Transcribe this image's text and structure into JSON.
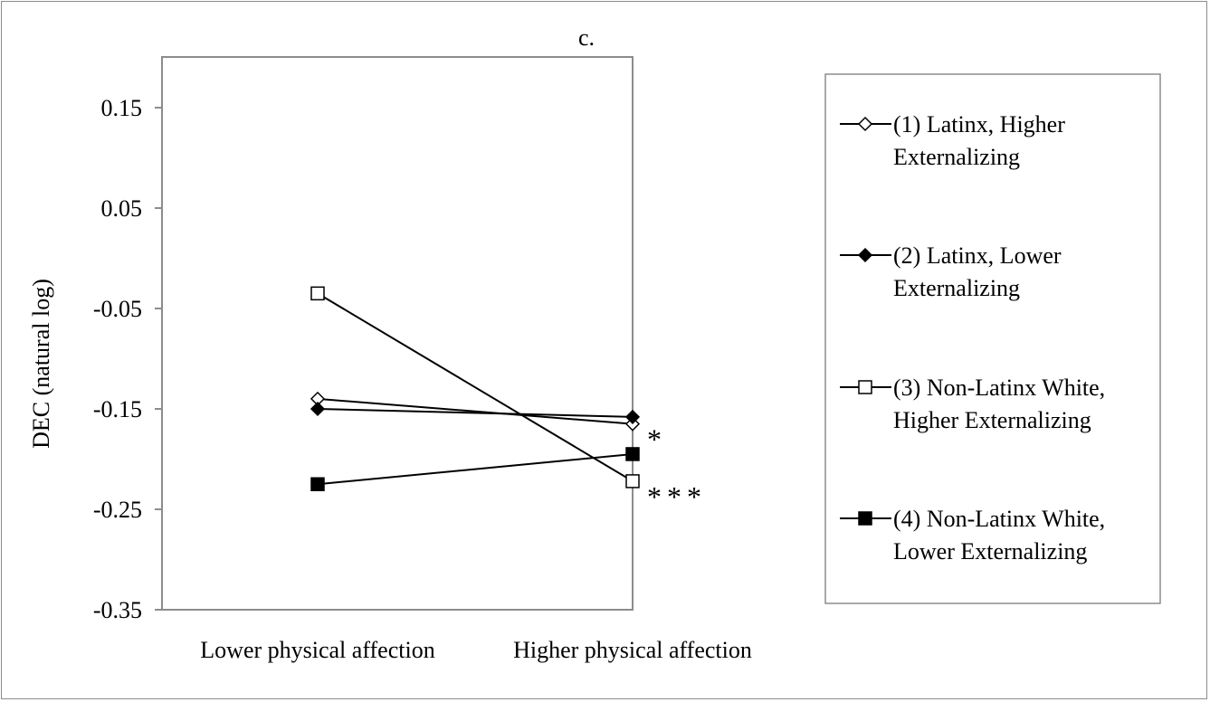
{
  "chart_data": {
    "type": "line",
    "title": "c.",
    "xlabel": "",
    "ylabel": "DEC (natural log)",
    "categories": [
      "Lower physical affection",
      "Higher physical affection"
    ],
    "ylim": [
      -0.35,
      0.2
    ],
    "yticks": [
      "0.15",
      "0.05",
      "-0.05",
      "-0.15",
      "-0.25",
      "-0.35"
    ],
    "ytick_values": [
      0.15,
      0.05,
      -0.05,
      -0.15,
      -0.25,
      -0.35
    ],
    "grid": false,
    "legend_position": "right",
    "series": [
      {
        "name_lines": [
          "(1) Latinx, Higher",
          "Externalizing"
        ],
        "marker": "diamond-open",
        "values": [
          -0.14,
          -0.165
        ],
        "annotation": "*"
      },
      {
        "name_lines": [
          "(2) Latinx, Lower",
          "Externalizing"
        ],
        "marker": "diamond-filled",
        "values": [
          -0.15,
          -0.158
        ],
        "annotation": ""
      },
      {
        "name_lines": [
          "(3) Non-Latinx White,",
          "Higher Externalizing"
        ],
        "marker": "square-open",
        "values": [
          -0.035,
          -0.222
        ],
        "annotation": "***"
      },
      {
        "name_lines": [
          "(4) Non-Latinx White,",
          "Lower Externalizing"
        ],
        "marker": "square-filled",
        "values": [
          -0.225,
          -0.195
        ],
        "annotation": ""
      }
    ]
  }
}
